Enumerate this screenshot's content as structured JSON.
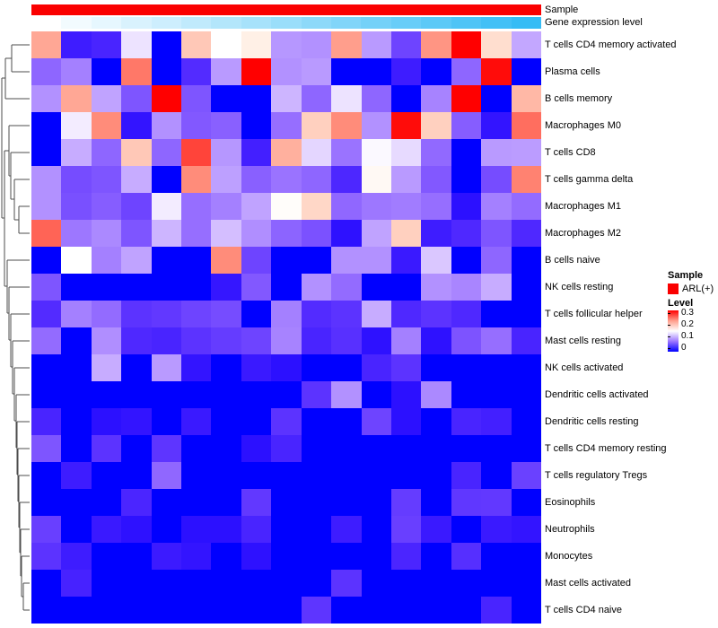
{
  "annotations": {
    "sample_label": "Sample",
    "gene_label": "Gene expression level",
    "sample_color": "#FA0000",
    "gene_gradient_start": "#FFFFFF",
    "gene_gradient_end": "#35BCF5"
  },
  "legend": {
    "sample_title": "Sample",
    "sample_swatch_label": "ARL(+)",
    "sample_swatch_color": "#FA0000",
    "level_title": "Level",
    "level_ticks": [
      "0.3",
      "0.2",
      "0.1",
      "0"
    ],
    "level_tick_values": [
      0.3,
      0.2,
      0.1,
      0
    ]
  },
  "chart_data": {
    "type": "heatmap",
    "title": "",
    "rows": [
      "T cells CD4 memory activated",
      "Plasma cells",
      "B cells memory",
      "Macrophages M0",
      "T cells CD8",
      "T cells gamma delta",
      "Macrophages M1",
      "Macrophages M2",
      "B cells naive",
      "NK cells resting",
      "T cells follicular helper",
      "Mast cells resting",
      "NK cells activated",
      "Dendritic cells activated",
      "Dendritic cells resting",
      "T cells CD4 memory resting",
      "T cells regulatory  Tregs",
      "Eosinophils",
      "Neutrophils",
      "Monocytes",
      "Mast cells activated",
      "T cells CD4 naive"
    ],
    "n_columns": 17,
    "value_range": [
      0,
      0.3
    ],
    "colormap": {
      "low": "#0000FF",
      "mid": "#FFFFFF",
      "high": "#FF0000",
      "midpoint": 0.15
    },
    "column_annotations": {
      "sample": {
        "label": "Sample",
        "value": "ARL(+)",
        "color": "#FA0000"
      },
      "gene_expression_level": {
        "label": "Gene expression level",
        "gradient": [
          0,
          0.0625,
          0.125,
          0.1875,
          0.25,
          0.3125,
          0.375,
          0.4375,
          0.5,
          0.5625,
          0.625,
          0.6875,
          0.75,
          0.8125,
          0.875,
          0.9375,
          1
        ]
      }
    },
    "values": [
      [
        0.22,
        0.02,
        0.025,
        0.135,
        0,
        0.2,
        0.15,
        0.17,
        0.093,
        0.09,
        0.225,
        0.095,
        0.045,
        0.23,
        0.3,
        0.185,
        0.102
      ],
      [
        0.065,
        0.08,
        0,
        0.245,
        0,
        0.03,
        0.095,
        0.3,
        0.09,
        0.095,
        0,
        0,
        0.02,
        0,
        0.065,
        0.295,
        0
      ],
      [
        0.09,
        0.22,
        0.1,
        0.055,
        0.3,
        0.055,
        0,
        0,
        0.11,
        0.065,
        0.135,
        0.065,
        0,
        0.082,
        0.3,
        0,
        0.21
      ],
      [
        0,
        0.14,
        0.235,
        0.015,
        0.09,
        0.057,
        0.062,
        0,
        0.07,
        0.195,
        0.235,
        0.09,
        0.295,
        0.195,
        0.06,
        0.015,
        0.25
      ],
      [
        0,
        0.105,
        0.065,
        0.2,
        0.065,
        0.27,
        0.093,
        0.022,
        0.215,
        0.128,
        0.073,
        0.147,
        0.13,
        0.067,
        0,
        0.095,
        0.096
      ],
      [
        0.09,
        0.05,
        0.055,
        0.105,
        0,
        0.235,
        0.098,
        0.062,
        0.073,
        0.065,
        0.027,
        0.16,
        0.095,
        0.057,
        0,
        0.05,
        0.24
      ],
      [
        0.09,
        0.052,
        0.06,
        0.045,
        0.14,
        0.07,
        0.08,
        0.1,
        0.155,
        0.19,
        0.066,
        0.075,
        0.078,
        0.07,
        0.012,
        0.08,
        0.068
      ],
      [
        0.255,
        0.075,
        0.085,
        0.055,
        0.11,
        0.07,
        0.115,
        0.088,
        0.064,
        0.053,
        0.013,
        0.1,
        0.195,
        0.02,
        0.028,
        0.055,
        0.028
      ],
      [
        0,
        0.15,
        0.08,
        0.1,
        0,
        0,
        0.235,
        0.045,
        0,
        0,
        0.09,
        0.09,
        0.018,
        0.12,
        0,
        0.065,
        0
      ],
      [
        0.055,
        0,
        0,
        0,
        0,
        0,
        0.016,
        0.057,
        0,
        0.09,
        0.068,
        0,
        0,
        0.09,
        0.083,
        0.105,
        0
      ],
      [
        0.03,
        0.08,
        0.068,
        0.035,
        0.038,
        0.045,
        0.05,
        0,
        0.08,
        0.03,
        0.035,
        0.105,
        0.028,
        0.035,
        0.028,
        0,
        0
      ],
      [
        0.068,
        0,
        0.088,
        0.028,
        0.025,
        0.035,
        0.04,
        0.045,
        0.082,
        0.025,
        0.033,
        0.013,
        0.08,
        0.013,
        0.054,
        0.07,
        0.025
      ],
      [
        0,
        0,
        0.105,
        0,
        0.095,
        0.015,
        0,
        0.018,
        0.012,
        0,
        0,
        0.025,
        0.035,
        0,
        0,
        0,
        0
      ],
      [
        0,
        0,
        0,
        0,
        0,
        0,
        0,
        0,
        0,
        0.035,
        0.09,
        0,
        0.012,
        0.085,
        0,
        0,
        0
      ],
      [
        0.025,
        0,
        0.012,
        0.015,
        0,
        0.018,
        0,
        0,
        0.035,
        0,
        0,
        0.045,
        0.012,
        0,
        0.025,
        0.022,
        0
      ],
      [
        0.055,
        0,
        0.035,
        0,
        0.036,
        0,
        0,
        0.012,
        0.025,
        0,
        0,
        0,
        0,
        0,
        0,
        0,
        0
      ],
      [
        0,
        0.02,
        0,
        0,
        0.066,
        0,
        0,
        0,
        0,
        0,
        0,
        0,
        0,
        0,
        0.025,
        0,
        0.043
      ],
      [
        0,
        0,
        0,
        0.026,
        0,
        0,
        0,
        0.038,
        0,
        0,
        0,
        0,
        0.04,
        0,
        0.037,
        0.038,
        0
      ],
      [
        0.042,
        0,
        0.018,
        0.013,
        0,
        0.012,
        0.012,
        0.025,
        0,
        0,
        0.02,
        0,
        0.042,
        0.018,
        0,
        0.018,
        0.015
      ],
      [
        0.035,
        0.02,
        0,
        0,
        0.019,
        0.015,
        0,
        0.013,
        0,
        0,
        0,
        0,
        0.026,
        0,
        0.032,
        0,
        0
      ],
      [
        0,
        0.024,
        0,
        0,
        0,
        0,
        0,
        0,
        0,
        0,
        0.035,
        0,
        0,
        0,
        0,
        0,
        0
      ],
      [
        0,
        0,
        0,
        0,
        0,
        0,
        0,
        0,
        0,
        0.036,
        0,
        0,
        0,
        0,
        0,
        0.025,
        0
      ]
    ]
  },
  "dendrogram": {
    "segments": [
      [
        13,
        50,
        33,
        50
      ],
      [
        13,
        80,
        33,
        80
      ],
      [
        13,
        50,
        13,
        80
      ],
      [
        6,
        65,
        13,
        65
      ],
      [
        6,
        110,
        33,
        110
      ],
      [
        6,
        65,
        6,
        110
      ],
      [
        21,
        230,
        33,
        230
      ],
      [
        21,
        260,
        33,
        260
      ],
      [
        21,
        230,
        21,
        260
      ],
      [
        16,
        200,
        33,
        200
      ],
      [
        16,
        245,
        21,
        245
      ],
      [
        16,
        200,
        16,
        245
      ],
      [
        12,
        170,
        33,
        170
      ],
      [
        12,
        222,
        16,
        222
      ],
      [
        12,
        170,
        12,
        222
      ],
      [
        10,
        140,
        33,
        140
      ],
      [
        10,
        196,
        12,
        196
      ],
      [
        10,
        140,
        10,
        196
      ],
      [
        26,
        650,
        33,
        650
      ],
      [
        26,
        680,
        33,
        680
      ],
      [
        26,
        650,
        26,
        680
      ],
      [
        24,
        620,
        33,
        620
      ],
      [
        24,
        665,
        26,
        665
      ],
      [
        24,
        620,
        24,
        665
      ],
      [
        23,
        590,
        33,
        590
      ],
      [
        23,
        642,
        24,
        642
      ],
      [
        23,
        590,
        23,
        642
      ],
      [
        22,
        560,
        33,
        560
      ],
      [
        22,
        616,
        23,
        616
      ],
      [
        22,
        560,
        22,
        616
      ],
      [
        21,
        530,
        33,
        530
      ],
      [
        21,
        588,
        22,
        588
      ],
      [
        21,
        530,
        21,
        588
      ],
      [
        20,
        500,
        33,
        500
      ],
      [
        20,
        559,
        21,
        559
      ],
      [
        20,
        500,
        20,
        559
      ],
      [
        19,
        470,
        33,
        470
      ],
      [
        19,
        529,
        20,
        529
      ],
      [
        19,
        470,
        19,
        529
      ],
      [
        18,
        440,
        33,
        440
      ],
      [
        18,
        499,
        19,
        499
      ],
      [
        18,
        440,
        18,
        499
      ],
      [
        16,
        410,
        33,
        410
      ],
      [
        16,
        469,
        18,
        469
      ],
      [
        16,
        410,
        16,
        469
      ],
      [
        14,
        380,
        33,
        380
      ],
      [
        14,
        439,
        16,
        439
      ],
      [
        14,
        380,
        14,
        439
      ],
      [
        12,
        350,
        33,
        350
      ],
      [
        12,
        409,
        14,
        409
      ],
      [
        12,
        350,
        12,
        409
      ],
      [
        10,
        320,
        33,
        320
      ],
      [
        10,
        379,
        12,
        379
      ],
      [
        10,
        320,
        10,
        379
      ],
      [
        8,
        290,
        33,
        290
      ],
      [
        8,
        349,
        10,
        349
      ],
      [
        8,
        290,
        8,
        349
      ],
      [
        5,
        168,
        10,
        168
      ],
      [
        5,
        319,
        8,
        319
      ],
      [
        5,
        168,
        5,
        319
      ],
      [
        2,
        87,
        6,
        87
      ],
      [
        2,
        243,
        5,
        243
      ],
      [
        2,
        87,
        2,
        243
      ]
    ]
  }
}
